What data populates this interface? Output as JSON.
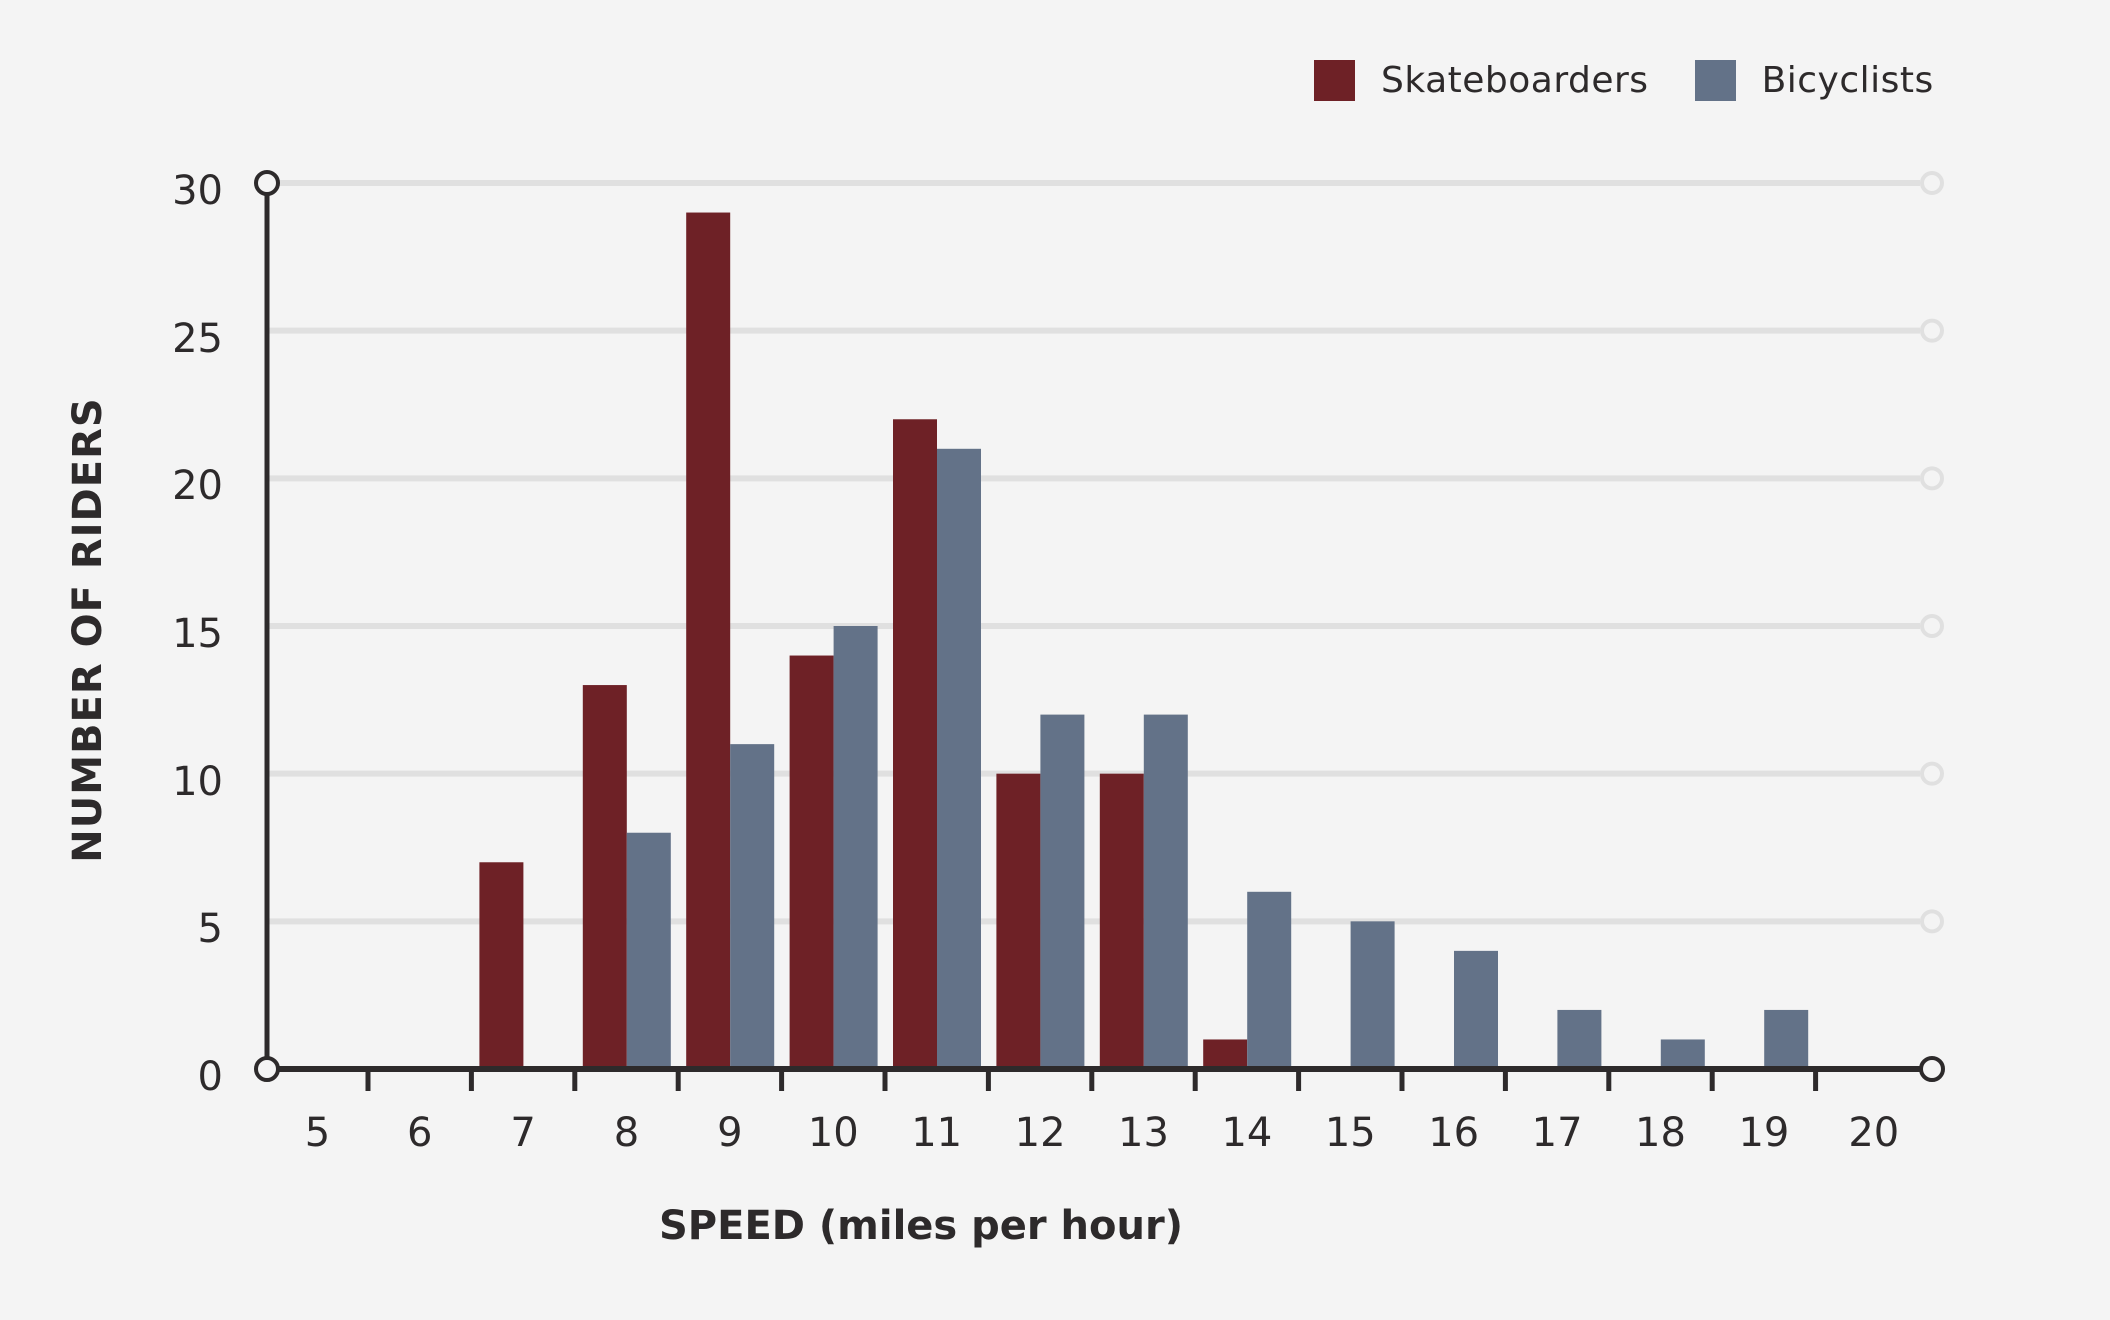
{
  "legend": {
    "items": [
      {
        "label": "Skateboarders",
        "color": "#6e2126"
      },
      {
        "label": "Bicyclists",
        "color": "#637288"
      }
    ]
  },
  "axes": {
    "x_label": "SPEED (miles per hour)",
    "y_label": "NUMBER OF RIDERS",
    "y_ticks": [
      "0",
      "5",
      "10",
      "15",
      "20",
      "25",
      "30"
    ],
    "x_ticks": [
      "5",
      "6",
      "7",
      "8",
      "9",
      "10",
      "11",
      "12",
      "13",
      "14",
      "15",
      "16",
      "17",
      "18",
      "19",
      "20"
    ]
  },
  "colors": {
    "background": "#f4f4f4",
    "gridline": "#e0e0e0",
    "axis": "#2d2a2b",
    "skateboarders": "#6e2126",
    "bicyclists": "#637288"
  },
  "chart_data": {
    "type": "bar",
    "title": "",
    "xlabel": "SPEED (miles per hour)",
    "ylabel": "NUMBER OF RIDERS",
    "categories": [
      "5",
      "6",
      "7",
      "8",
      "9",
      "10",
      "11",
      "12",
      "13",
      "14",
      "15",
      "16",
      "17",
      "18",
      "19",
      "20"
    ],
    "series": [
      {
        "name": "Skateboarders",
        "color": "#6e2126",
        "values": [
          0,
          0,
          7,
          13,
          29,
          14,
          22,
          10,
          10,
          1,
          0,
          0,
          0,
          0,
          0,
          0
        ]
      },
      {
        "name": "Bicyclists",
        "color": "#637288",
        "values": [
          0,
          0,
          0,
          8,
          11,
          15,
          21,
          12,
          12,
          6,
          5,
          4,
          2,
          1,
          2,
          0
        ]
      }
    ],
    "ylim": [
      0,
      30
    ],
    "yticks": [
      0,
      5,
      10,
      15,
      20,
      25,
      30
    ],
    "grid": true,
    "legend_position": "top-right"
  }
}
